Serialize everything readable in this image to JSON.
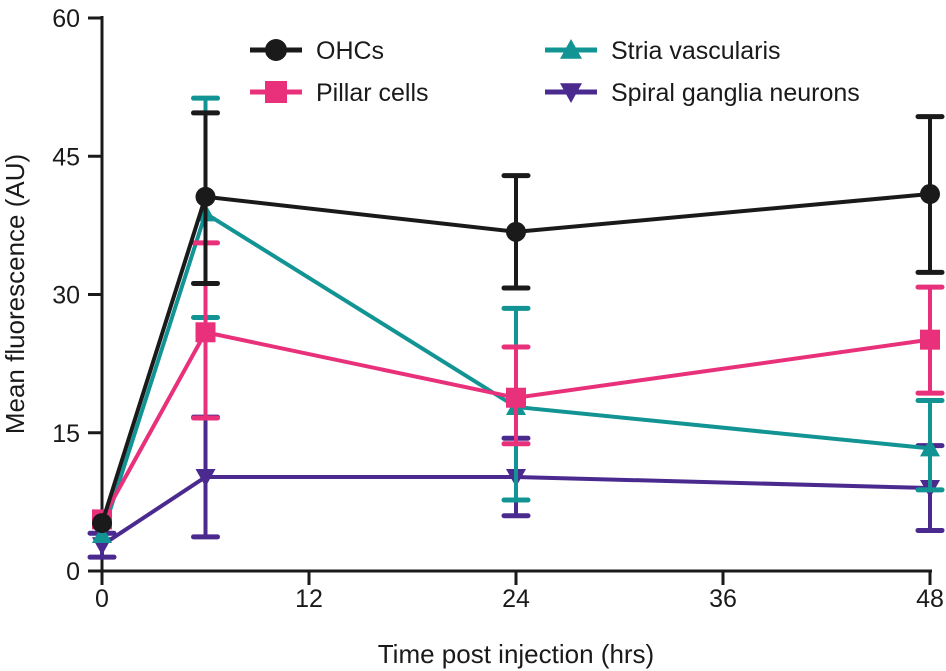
{
  "chart_data": {
    "type": "line",
    "title": "",
    "xlabel": "Time post injection (hrs)",
    "ylabel": "Mean fluorescence (AU)",
    "xlim": [
      0,
      48
    ],
    "ylim": [
      0,
      60
    ],
    "xticks": [
      0,
      12,
      24,
      36,
      48
    ],
    "yticks": [
      0,
      15,
      30,
      45,
      60
    ],
    "x": [
      0,
      6,
      24,
      48
    ],
    "grid": false,
    "legend_position": "top",
    "series": [
      {
        "name": "OHCs",
        "marker": "circle",
        "color": "#1a1a1a",
        "values": [
          5.2,
          40.6,
          36.8,
          40.9
        ],
        "err_low": [
          5.2,
          31.2,
          30.7,
          32.4
        ],
        "err_high": [
          5.2,
          49.7,
          42.9,
          49.3
        ]
      },
      {
        "name": "Pillar cells",
        "marker": "square",
        "color": "#e8317a",
        "values": [
          5.6,
          25.9,
          18.8,
          25.1
        ],
        "err_low": [
          5.6,
          16.6,
          13.8,
          19.3
        ],
        "err_high": [
          5.6,
          35.6,
          24.3,
          30.8
        ]
      },
      {
        "name": "Stria vascularis",
        "marker": "triangle-up",
        "color": "#139494",
        "values": [
          3.9,
          38.8,
          17.8,
          13.3
        ],
        "err_low": [
          3.9,
          27.5,
          7.7,
          8.8
        ],
        "err_high": [
          3.9,
          51.3,
          28.5,
          18.5
        ]
      },
      {
        "name": "Spiral ganglia neurons",
        "marker": "triangle-down",
        "color": "#4b2a8f",
        "values": [
          2.8,
          10.2,
          10.2,
          9.0
        ],
        "err_low": [
          1.5,
          3.7,
          6.0,
          4.4
        ],
        "err_high": [
          4.1,
          16.7,
          14.4,
          13.6
        ]
      }
    ]
  }
}
